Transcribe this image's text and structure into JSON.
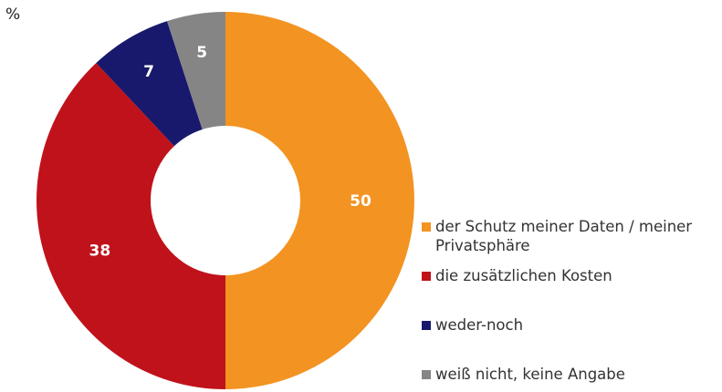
{
  "chart_data": {
    "type": "pie",
    "variant": "donut",
    "unit_label": "%",
    "start": "top, clockwise",
    "legend_position": "right",
    "slices": [
      {
        "label": "der Schutz meiner Daten / meiner Privatsphäre",
        "value": 50,
        "color": "#F39321"
      },
      {
        "label": "die zusätzlichen Kosten",
        "value": 38,
        "color": "#C0121A"
      },
      {
        "label": "weder-noch",
        "value": 7,
        "color": "#18196C"
      },
      {
        "label": "weiß nicht, keine Angabe",
        "value": 5,
        "color": "#858585"
      }
    ]
  }
}
